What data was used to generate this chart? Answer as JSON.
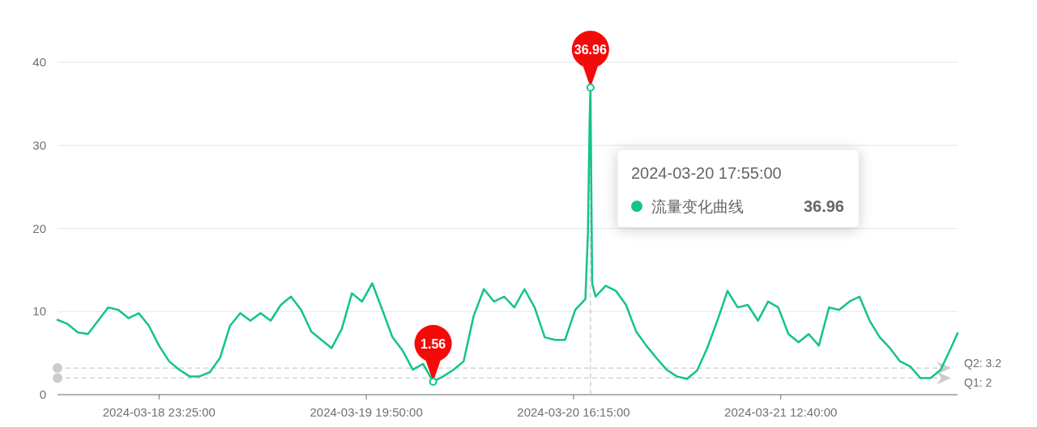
{
  "chart_data": {
    "type": "line",
    "x": [
      "2024-03-18T13:25",
      "2024-03-18T14:25",
      "2024-03-18T15:25",
      "2024-03-18T16:25",
      "2024-03-18T17:25",
      "2024-03-18T18:25",
      "2024-03-18T19:25",
      "2024-03-18T20:25",
      "2024-03-18T21:25",
      "2024-03-18T22:25",
      "2024-03-18T23:25",
      "2024-03-19T00:25",
      "2024-03-19T01:25",
      "2024-03-19T02:25",
      "2024-03-19T03:25",
      "2024-03-19T04:25",
      "2024-03-19T05:25",
      "2024-03-19T06:25",
      "2024-03-19T07:25",
      "2024-03-19T08:25",
      "2024-03-19T09:25",
      "2024-03-19T10:25",
      "2024-03-19T11:25",
      "2024-03-19T12:25",
      "2024-03-19T13:25",
      "2024-03-19T14:25",
      "2024-03-19T15:25",
      "2024-03-19T16:25",
      "2024-03-19T17:25",
      "2024-03-19T18:25",
      "2024-03-19T19:25",
      "2024-03-19T20:25",
      "2024-03-19T21:25",
      "2024-03-19T22:25",
      "2024-03-19T23:25",
      "2024-03-20T00:25",
      "2024-03-20T01:25",
      "2024-03-20T02:25",
      "2024-03-20T03:25",
      "2024-03-20T04:25",
      "2024-03-20T05:25",
      "2024-03-20T06:25",
      "2024-03-20T07:25",
      "2024-03-20T08:25",
      "2024-03-20T09:25",
      "2024-03-20T10:25",
      "2024-03-20T11:25",
      "2024-03-20T12:25",
      "2024-03-20T13:25",
      "2024-03-20T14:25",
      "2024-03-20T15:25",
      "2024-03-20T16:25",
      "2024-03-20T17:25",
      "2024-03-20T17:40",
      "2024-03-20T17:50",
      "2024-03-20T17:55",
      "2024-03-20T18:05",
      "2024-03-20T18:25",
      "2024-03-20T19:25",
      "2024-03-20T20:25",
      "2024-03-20T21:25",
      "2024-03-20T22:25",
      "2024-03-20T23:25",
      "2024-03-21T00:25",
      "2024-03-21T01:25",
      "2024-03-21T02:25",
      "2024-03-21T03:25",
      "2024-03-21T04:25",
      "2024-03-21T05:25",
      "2024-03-21T06:25",
      "2024-03-21T07:25",
      "2024-03-21T08:25",
      "2024-03-21T09:25",
      "2024-03-21T10:25",
      "2024-03-21T11:25",
      "2024-03-21T12:25",
      "2024-03-21T13:25",
      "2024-03-21T14:25",
      "2024-03-21T15:25",
      "2024-03-21T16:25",
      "2024-03-21T17:25",
      "2024-03-21T18:25",
      "2024-03-21T19:25",
      "2024-03-21T20:25",
      "2024-03-21T21:25",
      "2024-03-21T22:25",
      "2024-03-21T23:25",
      "2024-03-22T00:25",
      "2024-03-22T01:25",
      "2024-03-22T02:25",
      "2024-03-22T03:25",
      "2024-03-22T04:25",
      "2024-03-22T05:25",
      "2024-03-22T06:05"
    ],
    "series": [
      {
        "name": "流量变化曲线",
        "color": "#13c487",
        "values": [
          9.0,
          8.5,
          7.5,
          7.3,
          8.9,
          10.5,
          10.2,
          9.2,
          9.8,
          8.3,
          5.9,
          4.0,
          3.0,
          2.2,
          2.2,
          2.7,
          4.4,
          8.3,
          9.8,
          8.9,
          9.8,
          8.9,
          10.8,
          11.8,
          10.2,
          7.6,
          6.6,
          5.6,
          7.9,
          12.2,
          11.2,
          13.4,
          10.2,
          6.9,
          5.3,
          3.0,
          3.7,
          1.56,
          2.2,
          3.0,
          4.0,
          9.5,
          12.7,
          11.2,
          11.8,
          10.5,
          12.7,
          10.5,
          6.9,
          6.6,
          6.6,
          10.2,
          11.5,
          19.5,
          32.9,
          36.96,
          13.4,
          11.8,
          13.1,
          12.5,
          10.8,
          7.6,
          5.9,
          4.4,
          3.0,
          2.2,
          1.9,
          2.9,
          5.6,
          8.9,
          12.5,
          10.5,
          10.8,
          8.9,
          11.2,
          10.5,
          7.3,
          6.3,
          7.3,
          5.9,
          10.5,
          10.2,
          11.2,
          11.8,
          8.9,
          6.9,
          5.6,
          4.0,
          3.4,
          2.0,
          2.0,
          3.0,
          5.6,
          7.4
        ]
      }
    ],
    "xlim": [
      "2024-03-18T13:25",
      "2024-03-22T06:05"
    ],
    "xticks": [
      {
        "value": "2024-03-18T23:25",
        "label": "2024-03-18 23:25:00"
      },
      {
        "value": "2024-03-19T19:50",
        "label": "2024-03-19 19:50:00"
      },
      {
        "value": "2024-03-20T16:15",
        "label": "2024-03-20 16:15:00"
      },
      {
        "value": "2024-03-21T12:40",
        "label": "2024-03-21 12:40:00"
      }
    ],
    "ylim": [
      0,
      40
    ],
    "yticks": [
      0,
      10,
      20,
      30,
      40
    ],
    "grid": "y",
    "marker": "none",
    "legend": "right",
    "ref_lines": [
      {
        "axis": "y",
        "value": 3.2,
        "label": "Q2: 3.2",
        "color": "#cccccc",
        "line_style": "dashed"
      },
      {
        "axis": "y",
        "value": 2,
        "label": "Q1: 2",
        "color": "#cccccc",
        "line_style": "dashed"
      },
      {
        "axis": "x",
        "value": "2024-03-20T17:55",
        "color": "#b8bcc8",
        "line_style": "dashed"
      }
    ],
    "annotations": [
      {
        "text": "36.96",
        "x": "2024-03-20T17:55",
        "y": 36.96
      },
      {
        "text": "1.56",
        "x": "2024-03-20T02:25",
        "y": 1.56
      },
      "2024-03-20 17:55:00"
    ]
  }
}
